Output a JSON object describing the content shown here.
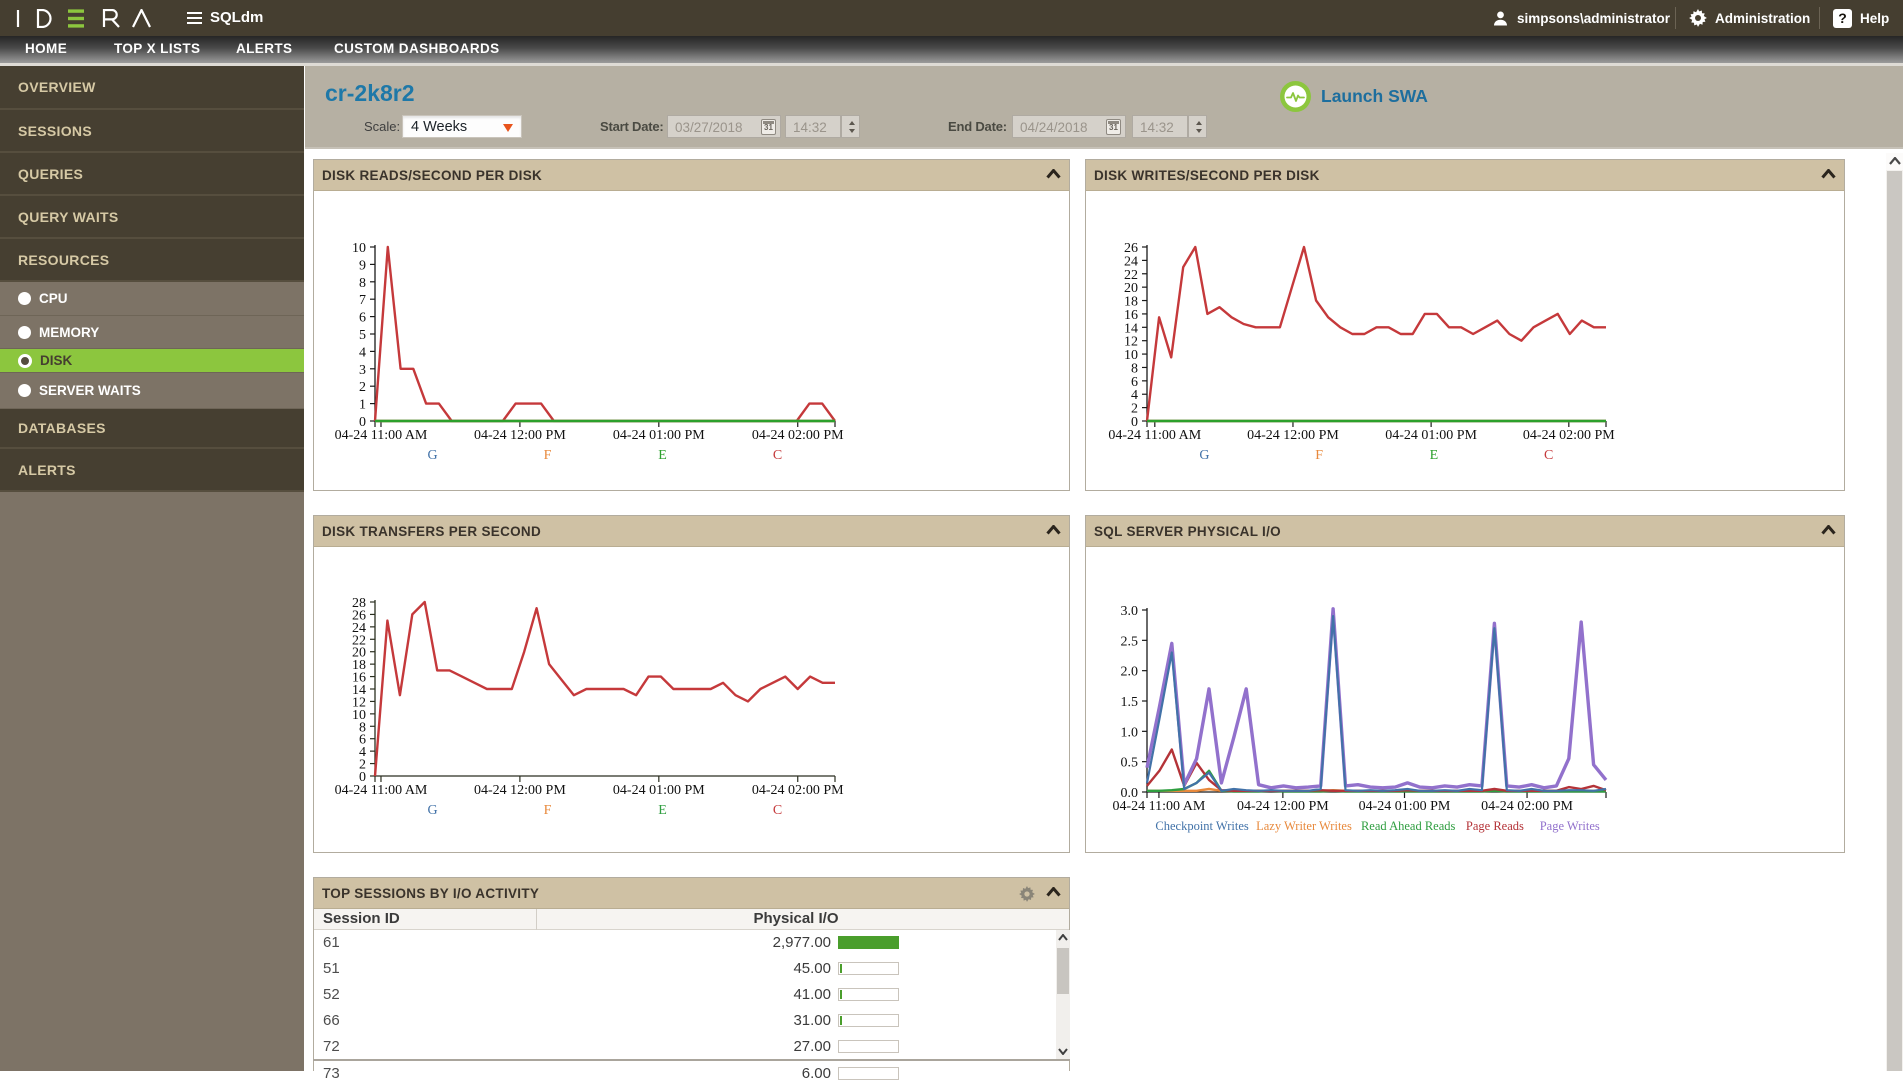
{
  "topbar": {
    "brand": "IDERA",
    "product": "SQLdm",
    "user": "simpsons\\administrator",
    "admin_label": "Administration",
    "help_label": "Help",
    "help_icon_glyph": "?"
  },
  "nav": {
    "items": [
      "HOME",
      "TOP X LISTS",
      "ALERTS",
      "CUSTOM DASHBOARDS"
    ]
  },
  "sidebar": {
    "items": [
      {
        "label": "OVERVIEW"
      },
      {
        "label": "SESSIONS"
      },
      {
        "label": "QUERIES"
      },
      {
        "label": "QUERY WAITS"
      },
      {
        "label": "RESOURCES"
      },
      {
        "label": "DATABASES"
      },
      {
        "label": "ALERTS"
      }
    ],
    "resources_children": [
      {
        "label": "CPU",
        "active": false
      },
      {
        "label": "MEMORY",
        "active": false
      },
      {
        "label": "DISK",
        "active": true
      },
      {
        "label": "SERVER WAITS",
        "active": false
      }
    ]
  },
  "header": {
    "title": "cr-2k8r2",
    "scale_label": "Scale:",
    "scale_value": "4 Weeks",
    "start_date_label": "Start Date:",
    "start_date": "03/27/2018",
    "start_time": "14:32",
    "end_date_label": "End Date:",
    "end_date": "04/24/2018",
    "end_time": "14:32",
    "launch_label": "Launch SWA",
    "calendar_icon_label": "31"
  },
  "colors": {
    "accent_green": "#8cc63e",
    "title_blue": "#1e78a8",
    "series_red": "#c5393b",
    "series_green": "#2ca02c",
    "series_blue": "#4272a8",
    "series_orange": "#e8893c",
    "series_purple": "#9271cc",
    "series_darkred": "#b43338",
    "bar_green": "#4a9e2c",
    "dropdown_arrow": "#e8541d"
  },
  "chart_data": [
    {
      "type": "line",
      "title": "DISK READS/SECOND PER DISK",
      "x_tick_labels": [
        "04-24 11:00 AM",
        "04-24 12:00 PM",
        "04-24 01:00 PM",
        "04-24 02:00 PM"
      ],
      "y_tick_labels": [
        "0",
        "1",
        "2",
        "3",
        "4",
        "5",
        "6",
        "7",
        "8",
        "9",
        "10"
      ],
      "ylim": [
        0,
        10
      ],
      "legend": [
        "G",
        "F",
        "E",
        "C"
      ],
      "series": [
        {
          "name": "G",
          "color": "#4272a8",
          "values": [
            0,
            0,
            0,
            0,
            0,
            0,
            0,
            0,
            0,
            0,
            0,
            0,
            0,
            0,
            0,
            0,
            0,
            0,
            0,
            0,
            0,
            0,
            0,
            0,
            0,
            0,
            0,
            0,
            0,
            0,
            0,
            0,
            0,
            0,
            0,
            0,
            0
          ]
        },
        {
          "name": "F",
          "color": "#e8893c",
          "values": [
            0,
            0,
            0,
            0,
            0,
            0,
            0,
            0,
            0,
            0,
            0,
            0,
            0,
            0,
            0,
            0,
            0,
            0,
            0,
            0,
            0,
            0,
            0,
            0,
            0,
            0,
            0,
            0,
            0,
            0,
            0,
            0,
            0,
            0,
            0,
            0,
            0
          ]
        },
        {
          "name": "E",
          "color": "#2ca02c",
          "values": [
            0,
            0,
            0,
            0,
            0,
            0,
            0,
            0,
            0,
            0,
            0,
            0,
            0,
            0,
            0,
            0,
            0,
            0,
            0,
            0,
            0,
            0,
            0,
            0,
            0,
            0,
            0,
            0,
            0,
            0,
            0,
            0,
            0,
            0,
            0,
            0,
            0
          ]
        },
        {
          "name": "C",
          "color": "#c5393b",
          "values": [
            0,
            10,
            3,
            3,
            1,
            1,
            0,
            0,
            0,
            0,
            0,
            1,
            1,
            1,
            0,
            0,
            0,
            0,
            0,
            0,
            0,
            0,
            0,
            0,
            0,
            0,
            0,
            0,
            0,
            0,
            0,
            0,
            0,
            0,
            1,
            1,
            0
          ]
        }
      ]
    },
    {
      "type": "line",
      "title": "DISK WRITES/SECOND PER DISK",
      "x_tick_labels": [
        "04-24 11:00 AM",
        "04-24 12:00 PM",
        "04-24 01:00 PM",
        "04-24 02:00 PM"
      ],
      "y_tick_labels": [
        "0",
        "2",
        "4",
        "6",
        "8",
        "10",
        "12",
        "14",
        "16",
        "18",
        "20",
        "22",
        "24",
        "26"
      ],
      "ylim": [
        0,
        26
      ],
      "legend": [
        "G",
        "F",
        "E",
        "C"
      ],
      "series": [
        {
          "name": "G",
          "color": "#4272a8",
          "values": [
            0,
            0,
            0,
            0,
            0,
            0,
            0,
            0,
            0,
            0,
            0,
            0,
            0,
            0,
            0,
            0,
            0,
            0,
            0,
            0,
            0,
            0,
            0,
            0,
            0,
            0,
            0,
            0,
            0,
            0,
            0,
            0,
            0,
            0,
            0,
            0,
            0,
            0,
            0
          ]
        },
        {
          "name": "F",
          "color": "#e8893c",
          "values": [
            0,
            0,
            0,
            0,
            0,
            0,
            0,
            0,
            0,
            0,
            0,
            0,
            0,
            0,
            0,
            0,
            0,
            0,
            0,
            0,
            0,
            0,
            0,
            0,
            0,
            0,
            0,
            0,
            0,
            0,
            0,
            0,
            0,
            0,
            0,
            0,
            0,
            0,
            0
          ]
        },
        {
          "name": "E",
          "color": "#2ca02c",
          "values": [
            0,
            0,
            0,
            0,
            0,
            0,
            0,
            0,
            0,
            0,
            0,
            0,
            0,
            0,
            0,
            0,
            0,
            0,
            0,
            0,
            0,
            0,
            0,
            0,
            0,
            0,
            0,
            0,
            0,
            0,
            0,
            0,
            0,
            0,
            0,
            0,
            0,
            0,
            0
          ]
        },
        {
          "name": "C",
          "color": "#c5393b",
          "values": [
            0,
            15.5,
            9.5,
            23,
            26,
            16,
            17,
            15.5,
            14.5,
            14,
            14,
            14,
            20,
            26,
            18,
            15.5,
            14,
            13,
            13,
            14,
            14,
            13,
            13,
            16,
            16,
            14,
            14,
            13,
            14,
            15,
            13,
            12,
            14,
            15,
            16,
            13,
            15,
            14,
            14
          ]
        }
      ]
    },
    {
      "type": "line",
      "title": "DISK TRANSFERS PER SECOND",
      "x_tick_labels": [
        "04-24 11:00 AM",
        "04-24 12:00 PM",
        "04-24 01:00 PM",
        "04-24 02:00 PM"
      ],
      "y_tick_labels": [
        "0",
        "2",
        "4",
        "6",
        "8",
        "10",
        "12",
        "14",
        "16",
        "18",
        "20",
        "22",
        "24",
        "26",
        "28"
      ],
      "ylim": [
        0,
        28
      ],
      "legend": [
        "G",
        "F",
        "E",
        "C"
      ],
      "series": [
        {
          "name": "C",
          "color": "#c5393b",
          "values": [
            0,
            25,
            13,
            26,
            28,
            17,
            17,
            16,
            15,
            14,
            14,
            14,
            20,
            27,
            18,
            15.5,
            13,
            14,
            14,
            14,
            14,
            13,
            16,
            16,
            14,
            14,
            14,
            14,
            15,
            13,
            12,
            14,
            15,
            16,
            14,
            16,
            15,
            15
          ]
        }
      ]
    },
    {
      "type": "line",
      "title": "SQL SERVER PHYSICAL I/O",
      "x_tick_labels": [
        "04-24 11:00 AM",
        "04-24 12:00 PM",
        "04-24 01:00 PM",
        "04-24 02:00 PM"
      ],
      "y_tick_labels": [
        "0.0",
        "0.5",
        "1.0",
        "1.5",
        "2.0",
        "2.5",
        "3.0"
      ],
      "ylim": [
        0,
        3
      ],
      "legend": [
        "Checkpoint Writes",
        "Lazy Writer Writes",
        "Read Ahead Reads",
        "Page Reads",
        "Page Writes"
      ],
      "series": [
        {
          "name": "Lazy Writer Writes",
          "color": "#e8893c",
          "values": [
            0.02,
            0.02,
            0.02,
            0.02,
            0.02,
            0.05,
            0.02,
            0.02,
            0.02,
            0.02,
            0.02,
            0.02,
            0.02,
            0.02,
            0.02,
            0.03,
            0.02,
            0.02,
            0.02,
            0.02,
            0.02,
            0.02,
            0.02,
            0.02,
            0.02,
            0.02,
            0.02,
            0.02,
            0.03,
            0.02,
            0.02,
            0.02,
            0.02,
            0.02,
            0.02,
            0.02,
            0.02,
            0.02
          ]
        },
        {
          "name": "Read Ahead Reads",
          "color": "#2f9e40",
          "values": [
            0.02,
            0.02,
            0.03,
            0.05,
            0.15,
            0.35,
            0.02,
            0.01,
            0.01,
            0.01,
            0.02,
            0.01,
            0.01,
            0.01,
            0.01,
            0.02,
            0.01,
            0.01,
            0.01,
            0.01,
            0.01,
            0.01,
            0.01,
            0.01,
            0.01,
            0.01,
            0.01,
            0.01,
            0.02,
            0.01,
            0.01,
            0.01,
            0.01,
            0.01,
            0.01,
            0.01,
            0.01,
            0.01
          ]
        },
        {
          "name": "Page Reads",
          "color": "#b43338",
          "values": [
            0.1,
            0.35,
            0.7,
            0.1,
            0.48,
            0.2,
            0.03,
            0.02,
            0.02,
            0.02,
            0.02,
            0.02,
            0.02,
            0.02,
            0.03,
            0.02,
            0.02,
            0.02,
            0.02,
            0.02,
            0.02,
            0.03,
            0.02,
            0.02,
            0.02,
            0.02,
            0.02,
            0.02,
            0.05,
            0.02,
            0.02,
            0.02,
            0.02,
            0.02,
            0.08,
            0.05,
            0.1,
            0.03
          ]
        },
        {
          "name": "Page Writes",
          "color": "#9271cc",
          "values": [
            0.4,
            1.4,
            2.45,
            0.12,
            0.55,
            1.7,
            0.15,
            0.9,
            1.7,
            0.12,
            0.07,
            0.1,
            0.07,
            0.08,
            0.1,
            3.02,
            0.1,
            0.12,
            0.08,
            0.07,
            0.08,
            0.15,
            0.08,
            0.07,
            0.1,
            0.08,
            0.12,
            0.1,
            2.78,
            0.1,
            0.08,
            0.12,
            0.07,
            0.1,
            0.55,
            2.8,
            0.45,
            0.2
          ]
        },
        {
          "name": "Checkpoint Writes",
          "color": "#4272a8",
          "values": [
            0.15,
            1.2,
            2.3,
            0.05,
            0.15,
            0.32,
            0.02,
            0.05,
            0.03,
            0.02,
            0.03,
            0.02,
            0.02,
            0.02,
            0.05,
            2.9,
            0.03,
            0.02,
            0.03,
            0.02,
            0.03,
            0.05,
            0.02,
            0.02,
            0.03,
            0.02,
            0.05,
            0.03,
            2.7,
            0.03,
            0.02,
            0.05,
            0.02,
            0.02,
            0.03,
            0.03,
            0.02,
            0.05
          ]
        }
      ]
    }
  ],
  "table": {
    "title": "TOP SESSIONS BY I/O ACTIVITY",
    "columns": [
      "Session ID",
      "Physical I/O"
    ],
    "rows": [
      {
        "id": "61",
        "value_label": "2,977.00",
        "value": 2977
      },
      {
        "id": "51",
        "value_label": "45.00",
        "value": 45
      },
      {
        "id": "52",
        "value_label": "41.00",
        "value": 41
      },
      {
        "id": "66",
        "value_label": "31.00",
        "value": 31
      },
      {
        "id": "72",
        "value_label": "27.00",
        "value": 27
      }
    ],
    "partial_row": {
      "id": "73",
      "value_label": "6.00",
      "value": 6
    }
  }
}
